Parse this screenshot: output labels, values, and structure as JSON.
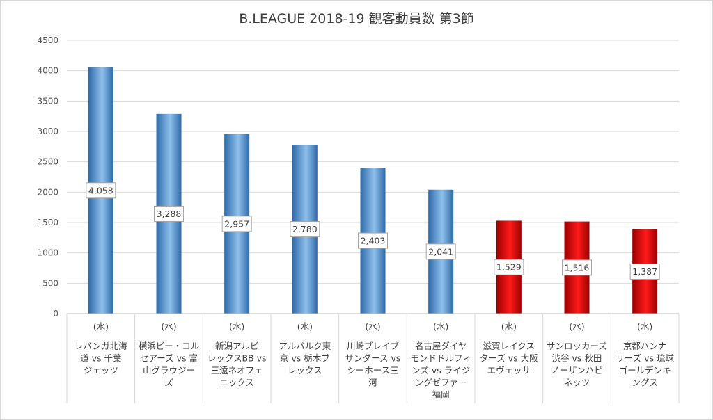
{
  "chart_data": {
    "type": "bar",
    "title": "B.LEAGUE 2018-19 観客動員数 第3節",
    "xlabel": "",
    "ylabel": "",
    "ylim": [
      0,
      4500
    ],
    "yticks": [
      0,
      500,
      1000,
      1500,
      2000,
      2500,
      3000,
      3500,
      4000,
      4500
    ],
    "grid": true,
    "legend": "none",
    "categories": [
      {
        "day": "(水)",
        "lines": [
          "レバンガ北海",
          "道 vs 千葉",
          "ジェッツ"
        ]
      },
      {
        "day": "(水)",
        "lines": [
          "横浜ビー・コル",
          "セアーズ vs 富",
          "山グラウジー",
          "ズ"
        ]
      },
      {
        "day": "(水)",
        "lines": [
          "新潟アルビ",
          "レックスBB vs",
          "三遠ネオフェ",
          "ニックス"
        ]
      },
      {
        "day": "(水)",
        "lines": [
          "アルバルク東",
          "京 vs 栃木ブ",
          "レックス"
        ]
      },
      {
        "day": "(水)",
        "lines": [
          "川崎ブレイブ",
          "サンダース vs",
          "シーホース三",
          "河"
        ]
      },
      {
        "day": "(水)",
        "lines": [
          "名古屋ダイヤ",
          "モンドドルフィ",
          "ンズ vs ライジ",
          "ングゼファー",
          "福岡"
        ]
      },
      {
        "day": "(水)",
        "lines": [
          "滋賀レイクス",
          "ターズ vs 大阪",
          "エヴェッサ"
        ]
      },
      {
        "day": "(水)",
        "lines": [
          "サンロッカーズ",
          "渋谷 vs 秋田",
          "ノーザンハピ",
          "ネッツ"
        ]
      },
      {
        "day": "(水)",
        "lines": [
          "京都ハンナ",
          "リーズ vs 琉球",
          "ゴールデンキ",
          "ングス"
        ]
      }
    ],
    "values": [
      4058,
      3288,
      2957,
      2780,
      2403,
      2041,
      1529,
      1516,
      1387
    ],
    "data_labels": [
      "4,058",
      "3,288",
      "2,957",
      "2,780",
      "2,403",
      "2,041",
      "1,529",
      "1,516",
      "1,387"
    ],
    "bar_colors": [
      "blue",
      "blue",
      "blue",
      "blue",
      "blue",
      "blue",
      "red",
      "red",
      "red"
    ],
    "colors": {
      "blue_dark": "#2e6aa8",
      "blue_light": "#8fc0ec",
      "red_dark": "#9c0000",
      "red_light": "#ff1a1a",
      "grid": "#d9d9d9",
      "axis": "#bfbfbf"
    }
  }
}
